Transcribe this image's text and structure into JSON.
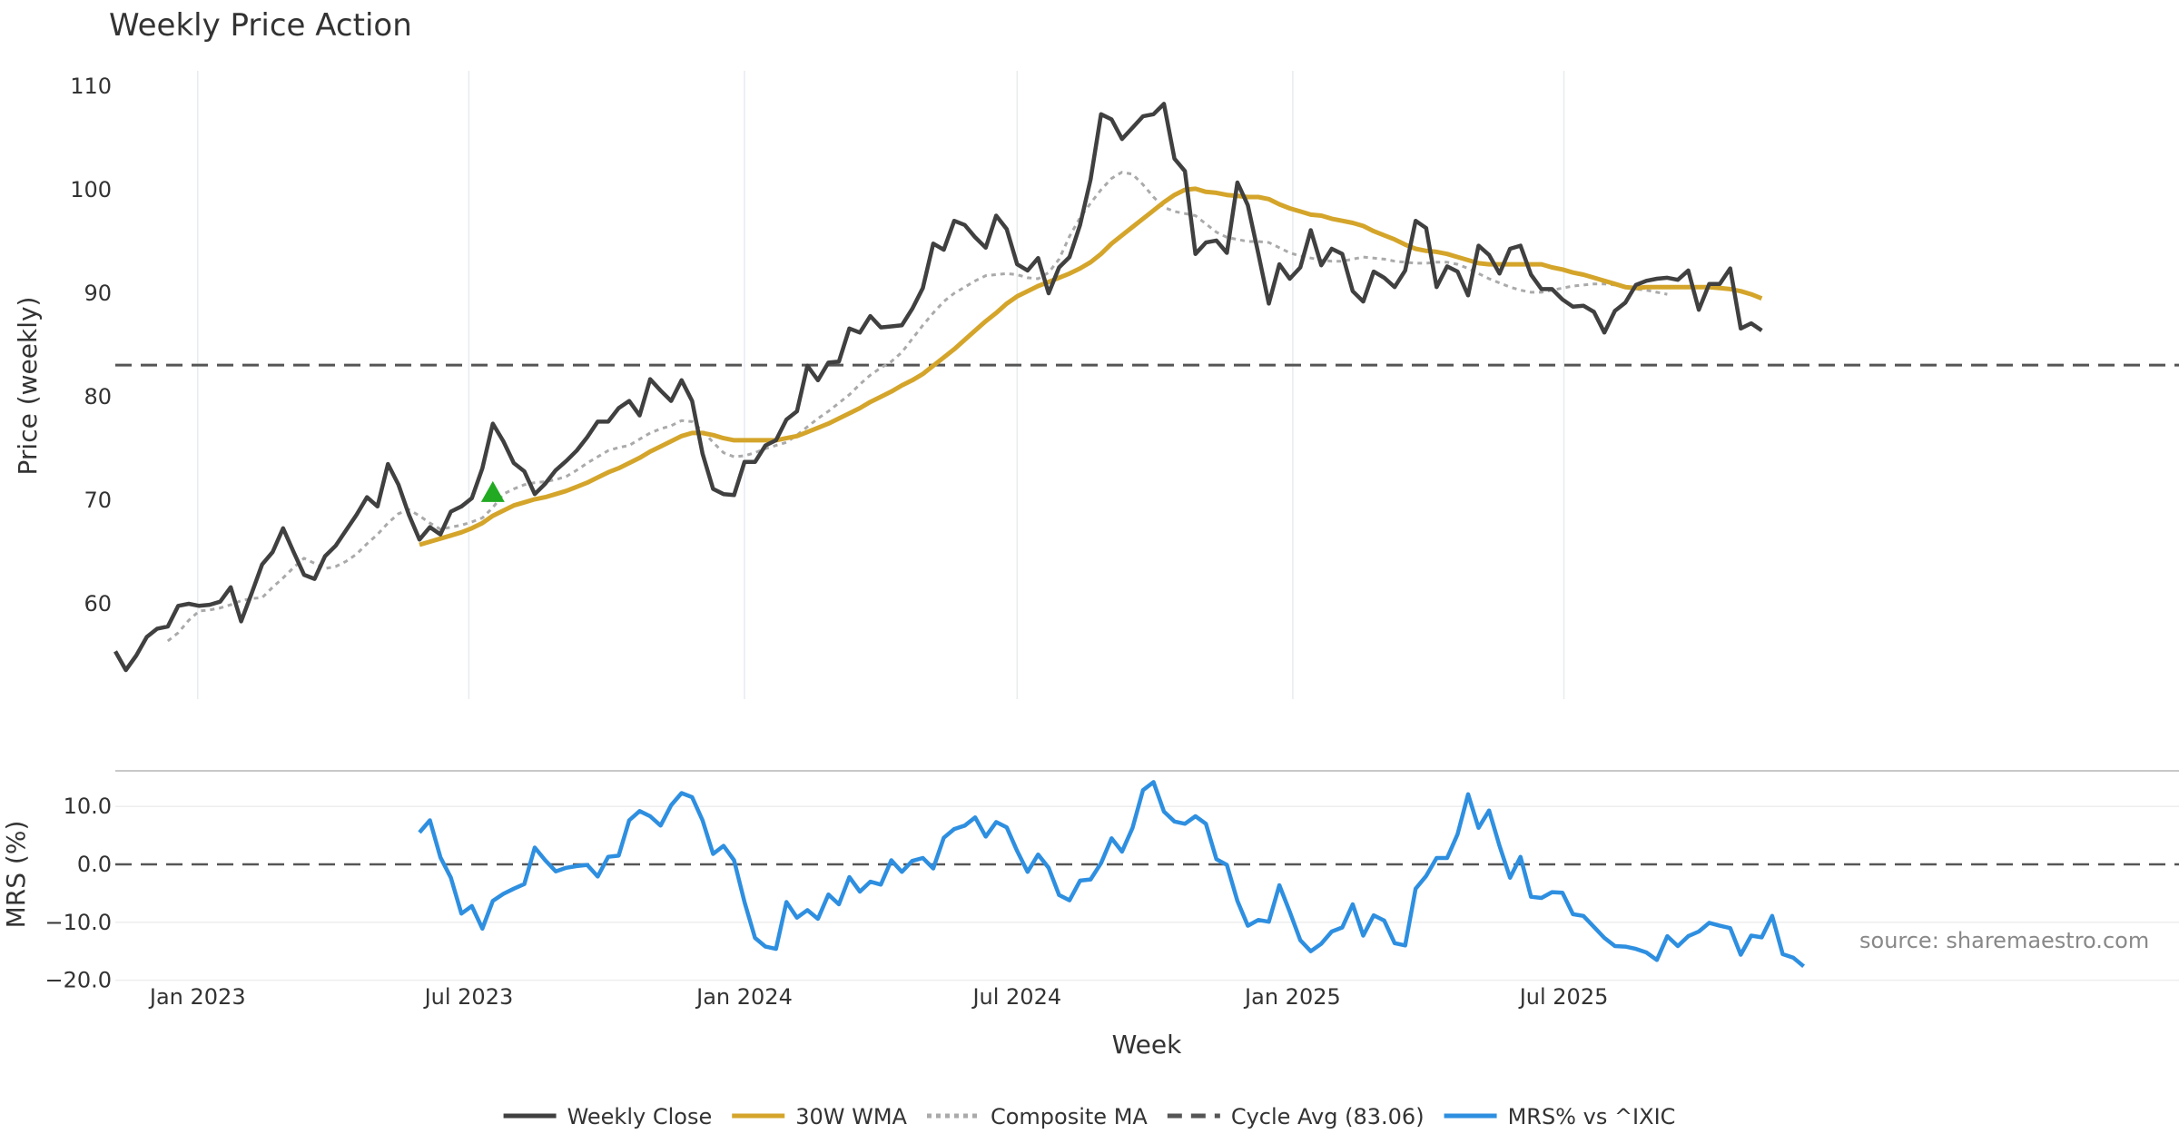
{
  "chart_data": [
    {
      "type": "line",
      "title": "Weekly Price Action",
      "ylabel": "Price (weekly)",
      "xlabel": "",
      "ylim": [
        51,
        111
      ],
      "yticks": [
        60,
        70,
        80,
        90,
        100,
        110
      ],
      "grid": true,
      "x_start": "2022-11-07",
      "x_step_days": 7,
      "series": [
        {
          "name": "Weekly Close",
          "color": "#404040",
          "style": "solid",
          "offset": 0,
          "values": [
            55.4,
            53.6,
            55.0,
            56.8,
            57.6,
            57.8,
            59.8,
            60.0,
            59.8,
            59.9,
            60.2,
            61.6,
            58.3,
            61.0,
            63.8,
            65.0,
            67.3,
            65.0,
            62.8,
            62.4,
            64.6,
            65.6,
            67.1,
            68.6,
            70.3,
            69.4,
            73.5,
            71.5,
            68.6,
            66.2,
            67.4,
            66.7,
            68.9,
            69.4,
            70.2,
            73.1,
            77.4,
            75.7,
            73.6,
            72.8,
            70.6,
            71.6,
            72.9,
            73.8,
            74.8,
            76.1,
            77.6,
            77.6,
            78.9,
            79.6,
            78.2,
            81.7,
            80.6,
            79.6,
            81.6,
            79.6,
            74.5,
            71.1,
            70.6,
            70.5,
            73.7,
            73.7,
            75.3,
            75.8,
            77.8,
            78.6,
            83.0,
            81.6,
            83.3,
            83.4,
            86.6,
            86.2,
            87.8,
            86.7,
            86.8,
            86.9,
            88.5,
            90.5,
            94.8,
            94.2,
            97.0,
            96.6,
            95.4,
            94.4,
            97.5,
            96.2,
            92.8,
            92.2,
            93.4,
            90.0,
            92.5,
            93.5,
            96.6,
            101.0,
            107.3,
            106.8,
            104.9,
            106.0,
            107.1,
            107.3,
            108.3,
            103.0,
            101.8,
            93.8,
            94.9,
            95.1,
            93.9,
            100.7,
            98.5,
            93.8,
            89.0,
            92.8,
            91.4,
            92.5,
            96.1,
            92.7,
            94.3,
            93.8,
            90.2,
            89.2,
            92.1,
            91.5,
            90.6,
            92.2,
            97.0,
            96.3,
            90.6,
            92.6,
            92.1,
            89.8,
            94.6,
            93.7,
            91.9,
            94.3,
            94.6,
            91.8,
            90.4,
            90.4,
            89.4,
            88.7,
            88.8,
            88.2,
            86.2,
            88.3,
            89.1,
            90.8,
            91.2,
            91.4,
            91.5,
            91.3,
            92.2,
            88.4,
            90.9,
            90.9,
            92.4,
            86.6,
            87.1,
            86.4
          ]
        },
        {
          "name": "30W WMA",
          "color": "#d4a52a",
          "style": "solid",
          "offset": 29,
          "values": [
            65.7,
            66.0,
            66.3,
            66.6,
            66.9,
            67.3,
            67.8,
            68.5,
            69.0,
            69.5,
            69.8,
            70.1,
            70.3,
            70.6,
            70.9,
            71.3,
            71.7,
            72.2,
            72.7,
            73.1,
            73.6,
            74.1,
            74.7,
            75.2,
            75.7,
            76.2,
            76.5,
            76.5,
            76.3,
            76.0,
            75.8,
            75.8,
            75.8,
            75.8,
            75.8,
            76.0,
            76.2,
            76.6,
            77.0,
            77.4,
            77.9,
            78.4,
            78.9,
            79.5,
            80.0,
            80.5,
            81.1,
            81.6,
            82.2,
            83.0,
            83.8,
            84.6,
            85.5,
            86.4,
            87.3,
            88.1,
            89.0,
            89.7,
            90.2,
            90.7,
            91.1,
            91.5,
            91.9,
            92.4,
            93.0,
            93.8,
            94.8,
            95.6,
            96.4,
            97.2,
            98.0,
            98.8,
            99.5,
            100.0,
            100.1,
            99.8,
            99.7,
            99.5,
            99.4,
            99.3,
            99.3,
            99.1,
            98.6,
            98.2,
            97.9,
            97.6,
            97.5,
            97.2,
            97.0,
            96.8,
            96.5,
            96.0,
            95.6,
            95.2,
            94.7,
            94.3,
            94.1,
            94.0,
            93.8,
            93.5,
            93.2,
            92.9,
            92.8,
            92.8,
            92.8,
            92.8,
            92.8,
            92.8,
            92.5,
            92.3,
            92.0,
            91.8,
            91.5,
            91.2,
            90.9,
            90.6,
            90.5,
            90.6,
            90.6,
            90.6,
            90.6,
            90.6,
            90.6,
            90.6,
            90.5,
            90.4,
            90.2,
            89.9,
            89.5
          ]
        },
        {
          "name": "Composite MA",
          "color": "#aaaaaa",
          "style": "dotted",
          "offset": 5,
          "values": [
            56.4,
            57.2,
            58.4,
            59.3,
            59.4,
            59.6,
            59.9,
            60.3,
            60.5,
            60.6,
            61.6,
            62.5,
            63.5,
            64.4,
            63.9,
            63.4,
            63.6,
            64.1,
            64.8,
            65.8,
            66.7,
            67.8,
            68.7,
            69.1,
            68.5,
            67.8,
            67.2,
            67.4,
            67.6,
            67.9,
            68.3,
            69.3,
            70.6,
            71.1,
            71.5,
            71.7,
            71.8,
            72.0,
            72.3,
            72.9,
            73.6,
            74.2,
            74.8,
            75.1,
            75.3,
            75.9,
            76.5,
            76.9,
            77.2,
            77.7,
            77.6,
            76.7,
            75.6,
            74.6,
            74.2,
            74.3,
            74.6,
            75.0,
            75.3,
            75.6,
            76.3,
            77.1,
            77.9,
            78.6,
            79.4,
            80.2,
            81.2,
            82.1,
            82.8,
            83.4,
            84.3,
            85.6,
            86.9,
            88.1,
            89.2,
            90.0,
            90.6,
            91.2,
            91.7,
            91.8,
            91.9,
            91.8,
            91.5,
            91.4,
            92.0,
            93.3,
            95.5,
            97.3,
            98.7,
            100.0,
            101.1,
            101.7,
            101.5,
            100.5,
            99.3,
            98.3,
            97.9,
            97.7,
            97.5,
            96.7,
            95.9,
            95.4,
            95.2,
            95.0,
            95.0,
            94.9,
            94.4,
            93.9,
            93.6,
            93.4,
            93.2,
            93.1,
            93.1,
            93.3,
            93.5,
            93.4,
            93.3,
            93.1,
            93.0,
            92.9,
            92.9,
            93.0,
            93.0,
            92.8,
            92.4,
            91.9,
            91.4,
            91.0,
            90.6,
            90.3,
            90.1,
            90.1,
            90.3,
            90.5,
            90.7,
            90.8,
            90.9,
            90.9,
            90.8,
            90.6,
            90.4,
            90.3,
            90.1,
            89.9
          ]
        }
      ],
      "hlines": [
        {
          "name": "Cycle Avg (83.06)",
          "value": 83.06,
          "color": "#555555",
          "style": "dashed"
        }
      ],
      "markers": [
        {
          "shape": "triangle-up",
          "index": 36,
          "y": 70.8,
          "color": "#22aa22"
        }
      ]
    },
    {
      "type": "line",
      "ylabel": "MRS (%)",
      "xlabel": "Week",
      "ylim": [
        -20,
        15
      ],
      "yticks": [
        "−20.0",
        "−10.0",
        "0.0",
        "10.0"
      ],
      "ytick_values": [
        -20,
        -10,
        0,
        10
      ],
      "x_ticks": [
        "Jan 2023",
        "Jul 2023",
        "Jan 2024",
        "Jul 2024",
        "Jan 2025",
        "Jul 2025"
      ],
      "x_tick_dates": [
        "2023-01-01",
        "2023-07-01",
        "2024-01-01",
        "2024-07-01",
        "2025-01-01",
        "2025-07-01"
      ],
      "zero_line": {
        "value": 0,
        "style": "dashed",
        "color": "#555555"
      },
      "series": [
        {
          "name": "MRS% vs ^IXIC",
          "color": "#2e8fe0",
          "style": "solid",
          "offset": 29,
          "values": [
            5.5,
            7.6,
            1.2,
            -2.3,
            -8.5,
            -7.2,
            -11.1,
            -6.3,
            -5.1,
            -4.2,
            -3.4,
            2.9,
            0.7,
            -1.2,
            -0.6,
            -0.3,
            -0.1,
            -2.1,
            1.3,
            1.5,
            7.6,
            9.2,
            8.3,
            6.7,
            10.2,
            12.3,
            11.6,
            7.6,
            1.8,
            3.2,
            0.7,
            -6.5,
            -12.7,
            -14.2,
            -14.6,
            -6.5,
            -9.2,
            -7.9,
            -9.4,
            -5.2,
            -6.9,
            -2.2,
            -4.7,
            -3.0,
            -3.5,
            0.7,
            -1.3,
            0.6,
            1.1,
            -0.7,
            4.6,
            6.1,
            6.7,
            8.1,
            4.8,
            7.3,
            6.4,
            2.3,
            -1.3,
            1.7,
            -0.6,
            -5.3,
            -6.2,
            -2.8,
            -2.6,
            0.2,
            4.5,
            2.2,
            6.3,
            12.8,
            14.2,
            9.1,
            7.4,
            7.0,
            8.3,
            7.0,
            0.9,
            -0.1,
            -6.3,
            -10.6,
            -9.6,
            -9.9,
            -3.6,
            -8.2,
            -13.1,
            -15.0,
            -13.7,
            -11.6,
            -10.9,
            -6.9,
            -12.3,
            -8.8,
            -9.7,
            -13.6,
            -14.0,
            -4.2,
            -2.0,
            1.1,
            1.1,
            5.2,
            12.1,
            6.3,
            9.3,
            3.2,
            -2.3,
            1.3,
            -5.6,
            -5.8,
            -4.8,
            -4.9,
            -8.6,
            -8.9,
            -10.8,
            -12.7,
            -14.1,
            -14.2,
            -14.6,
            -15.2,
            -16.5,
            -12.4,
            -14.1,
            -12.4,
            -11.6,
            -10.1,
            -10.6,
            -11.0,
            -15.6,
            -12.3,
            -12.6,
            -8.9,
            -15.5,
            -16.1,
            -17.6
          ]
        }
      ],
      "annotations": [
        "source: sharemaestro.com"
      ]
    }
  ],
  "legend": {
    "placement": "bottom-center",
    "items": [
      {
        "label": "Weekly Close",
        "color": "#404040",
        "style": "solid"
      },
      {
        "label": "30W WMA",
        "color": "#d4a52a",
        "style": "solid"
      },
      {
        "label": "Composite MA",
        "color": "#aaaaaa",
        "style": "dotted"
      },
      {
        "label": "Cycle Avg (83.06)",
        "color": "#555555",
        "style": "dashed"
      },
      {
        "label": "MRS% vs ^IXIC",
        "color": "#2e8fe0",
        "style": "solid"
      }
    ]
  }
}
